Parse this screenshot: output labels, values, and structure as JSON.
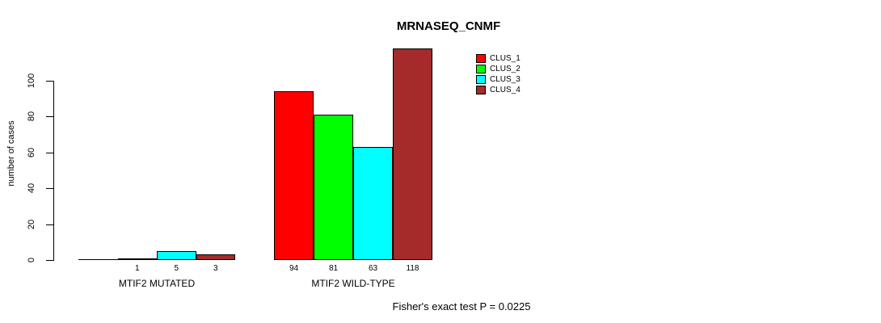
{
  "title": "MRNASEQ_CNMF",
  "y_axis": {
    "label": "number of cases",
    "ticks": [
      0,
      20,
      40,
      60,
      80,
      100
    ]
  },
  "legend": {
    "items": [
      {
        "label": "CLUS_1",
        "color": "#ff0000"
      },
      {
        "label": "CLUS_2",
        "color": "#00ff00"
      },
      {
        "label": "CLUS_3",
        "color": "#00ffff"
      },
      {
        "label": "CLUS_4",
        "color": "#a52a2a"
      }
    ]
  },
  "footer": "Fisher's exact test P = 0.0225",
  "chart_data": {
    "type": "bar",
    "title": "MRNASEQ_CNMF",
    "xlabel": "",
    "ylabel": "number of cases",
    "ylim": [
      0,
      100
    ],
    "grid": false,
    "legend_position": "top-right",
    "categories": [
      "MTIF2 MUTATED",
      "MTIF2 WILD-TYPE"
    ],
    "series": [
      {
        "name": "CLUS_1",
        "color": "#ff0000",
        "values": [
          0,
          94
        ]
      },
      {
        "name": "CLUS_2",
        "color": "#00ff00",
        "values": [
          1,
          81
        ]
      },
      {
        "name": "CLUS_3",
        "color": "#00ffff",
        "values": [
          5,
          63
        ]
      },
      {
        "name": "CLUS_4",
        "color": "#a52a2a",
        "values": [
          3,
          118
        ]
      }
    ],
    "bar_value_labels": [
      [
        "",
        "1",
        "5",
        "3"
      ],
      [
        "94",
        "81",
        "63",
        "118"
      ]
    ],
    "annotation": "Fisher's exact test P = 0.0225"
  }
}
